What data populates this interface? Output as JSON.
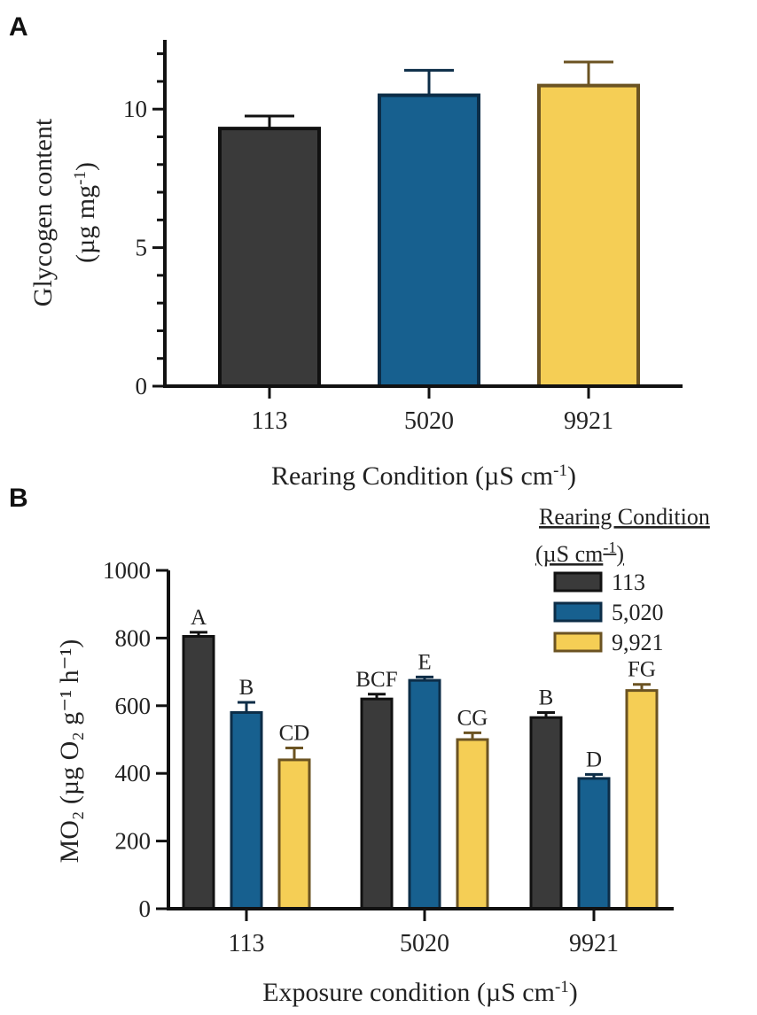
{
  "chart_data": [
    {
      "panel": "A",
      "type": "bar",
      "title": "",
      "xlabel": "Rearing Condition (µS cm⁻¹)",
      "xlabel_main": "Rearing Condition (µS cm",
      "xlabel_sup": "-1",
      "xlabel_end": ")",
      "ylabel_line1": "Glycogen content",
      "ylabel_line2_main": "(µg mg",
      "ylabel_line2_sup": "-1",
      "ylabel_line2_end": ")",
      "ylim": [
        0,
        12.5
      ],
      "yticks": [
        0,
        5,
        10
      ],
      "categories": [
        "113",
        "5020",
        "9921"
      ],
      "values": [
        9.3,
        10.5,
        10.85
      ],
      "errors": [
        0.45,
        0.9,
        0.85
      ],
      "colors": [
        "#3a3a3a",
        "#17608f",
        "#f5ce55"
      ],
      "edge_colors": [
        "#111111",
        "#0c2d47",
        "#6b5322"
      ]
    },
    {
      "panel": "B",
      "type": "bar",
      "title": "",
      "xlabel": "Exposure condition (µS cm⁻¹)",
      "xlabel_main": "Exposure condition (µS cm",
      "xlabel_sup": "-1",
      "xlabel_end": ")",
      "ylabel": "MO₂ (µg O₂ g⁻¹ h⁻¹)",
      "ylim": [
        0,
        1000
      ],
      "yticks": [
        0,
        200,
        400,
        600,
        800,
        1000
      ],
      "categories": [
        "113",
        "5020",
        "9921"
      ],
      "legend_title_line1": "Rearing Condition",
      "legend_title_line2_main": "(µS cm",
      "legend_title_line2_sup": "-1",
      "legend_title_line2_end": ")",
      "series": [
        {
          "name": "113",
          "color": "#3a3a3a",
          "edge": "#111111",
          "values": [
            805,
            620,
            565
          ],
          "errors": [
            12,
            14,
            15
          ],
          "letters": [
            "A",
            "BCF",
            "B"
          ]
        },
        {
          "name": "5,020",
          "color": "#17608f",
          "edge": "#0c2d47",
          "values": [
            580,
            675,
            385
          ],
          "errors": [
            30,
            10,
            12
          ],
          "letters": [
            "B",
            "E",
            "D"
          ]
        },
        {
          "name": "9,921",
          "color": "#f5ce55",
          "edge": "#6b5322",
          "values": [
            440,
            500,
            645
          ],
          "errors": [
            35,
            20,
            18
          ],
          "letters": [
            "CD",
            "CG",
            "FG"
          ]
        }
      ]
    }
  ],
  "panel_labels": [
    "A",
    "B"
  ]
}
